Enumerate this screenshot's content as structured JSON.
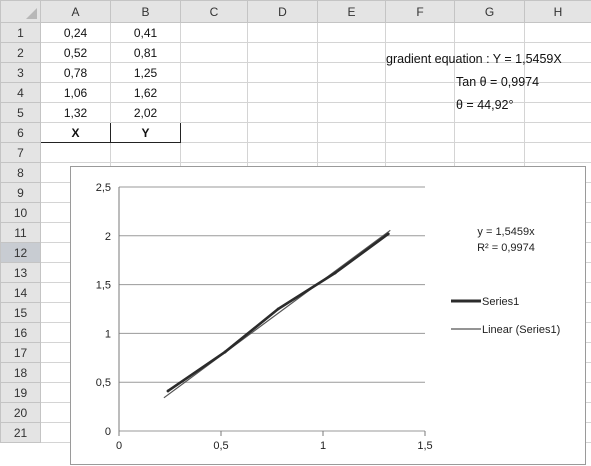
{
  "columns": [
    "A",
    "B",
    "C",
    "D",
    "E",
    "F",
    "G",
    "H"
  ],
  "rows": [
    "1",
    "2",
    "3",
    "4",
    "5",
    "6",
    "7",
    "8",
    "9",
    "10",
    "11",
    "12",
    "13",
    "14",
    "15",
    "16",
    "17",
    "18",
    "19",
    "20",
    "21"
  ],
  "selected_row": "12",
  "cells": {
    "A1": "0,24",
    "B1": "0,41",
    "A2": "0,52",
    "B2": "0,81",
    "A3": "0,78",
    "B3": "1,25",
    "A4": "1,06",
    "B4": "1,62",
    "A5": "1,32",
    "B5": "2,02",
    "A6": "X",
    "B6": "Y"
  },
  "annotations": {
    "gradient_equation": "gradient equation : Y = 1,5459X",
    "tan_theta": "Tan θ = 0,9974",
    "theta": "θ = 44,92°"
  },
  "chart_data": {
    "type": "scatter",
    "x": [
      0.24,
      0.52,
      0.78,
      1.06,
      1.32
    ],
    "series": [
      {
        "name": "Series1",
        "values": [
          0.41,
          0.81,
          1.25,
          1.62,
          2.02
        ],
        "color": "#2b2b2b"
      },
      {
        "name": "Linear (Series1)",
        "trendline": true,
        "slope": 1.5459,
        "color": "#555555"
      }
    ],
    "x_ticks": [
      "0",
      "0,5",
      "1",
      "1,5"
    ],
    "y_ticks": [
      "0",
      "0,5",
      "1",
      "1,5",
      "2",
      "2,5"
    ],
    "xlim": [
      0,
      1.5
    ],
    "ylim": [
      0,
      2.5
    ],
    "grid": "horizontal",
    "legend_position": "right",
    "trendline_equation": "y = 1,5459x",
    "r_squared": "R² = 0,9974"
  }
}
